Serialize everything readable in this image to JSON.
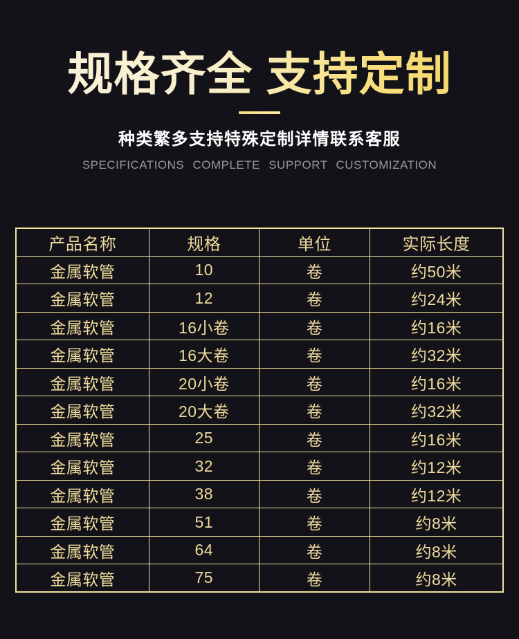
{
  "colors": {
    "background": "#121218",
    "title_gradient_start": "#f9f1d8",
    "title_gradient_end": "#f6d96e",
    "subtitle_text": "#ffffff",
    "tagline_text": "#97979c",
    "table_border": "#f3e4a4",
    "table_text": "#efdb9d"
  },
  "header": {
    "title": "规格齐全 支持定制",
    "subtitle": "种类繁多支持特殊定制详情联系客服",
    "tagline_en": "SPECIFICATIONS COMPLETE SUPPORT CUSTOMIZATION"
  },
  "table": {
    "columns": [
      "产品名称",
      "规格",
      "单位",
      "实际长度"
    ],
    "rows": [
      {
        "cells": [
          "金属软管",
          "10",
          "卷",
          "约50米"
        ]
      },
      {
        "cells": [
          "金属软管",
          "12",
          "卷",
          "约24米"
        ]
      },
      {
        "cells": [
          "金属软管",
          "16小卷",
          "卷",
          "约16米"
        ]
      },
      {
        "cells": [
          "金属软管",
          "16大卷",
          "卷",
          "约32米"
        ]
      },
      {
        "cells": [
          "金属软管",
          "20小卷",
          "卷",
          "约16米"
        ]
      },
      {
        "cells": [
          "金属软管",
          "20大卷",
          "卷",
          "约32米"
        ]
      },
      {
        "cells": [
          "金属软管",
          "25",
          "卷",
          "约16米"
        ]
      },
      {
        "cells": [
          "金属软管",
          "32",
          "卷",
          "约12米"
        ]
      },
      {
        "cells": [
          "金属软管",
          "38",
          "卷",
          "约12米"
        ]
      },
      {
        "cells": [
          "金属软管",
          "51",
          "卷",
          "约8米"
        ]
      },
      {
        "cells": [
          "金属软管",
          "64",
          "卷",
          "约8米"
        ]
      },
      {
        "cells": [
          "金属软管",
          "75",
          "卷",
          "约8米"
        ]
      }
    ]
  }
}
